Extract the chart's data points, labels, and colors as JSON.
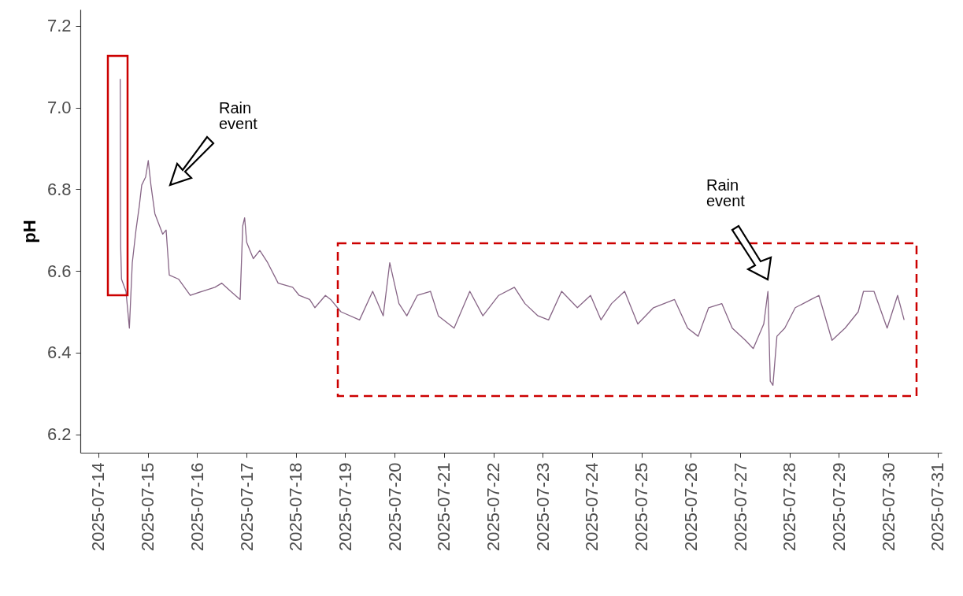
{
  "chart_data": {
    "type": "line",
    "ylabel": "pH",
    "x": [
      "2025-07-14T10:36",
      "2025-07-14T10:50",
      "2025-07-14T11:13",
      "2025-07-14T13:24",
      "2025-07-14T15:03",
      "2025-07-14T16:28",
      "2025-07-14T18:16",
      "2025-07-14T19:54",
      "2025-07-14T21:03",
      "2025-07-14T22:58",
      "2025-07-15T00:14",
      "2025-07-15T01:32",
      "2025-07-15T03:27",
      "2025-07-15T07:16",
      "2025-07-15T08:55",
      "2025-07-15T10:27",
      "2025-07-15T14:56",
      "2025-07-15T20:40",
      "2025-07-16T02:25",
      "2025-07-16T08:39",
      "2025-07-16T11:59",
      "2025-07-16T16:19",
      "2025-07-16T20:54",
      "2025-07-16T22:10",
      "2025-07-16T23:05",
      "2025-07-17T00:05",
      "2025-07-17T03:18",
      "2025-07-17T06:28",
      "2025-07-17T10:18",
      "2025-07-17T15:23",
      "2025-07-17T22:26",
      "2025-07-18T01:37",
      "2025-07-18T06:43",
      "2025-07-18T09:16",
      "2025-07-18T14:22",
      "2025-07-18T16:56",
      "2025-07-18T21:54",
      "2025-07-19T06:58",
      "2025-07-19T13:20",
      "2025-07-19T18:28",
      "2025-07-19T21:38",
      "2025-07-20T02:07",
      "2025-07-20T05:56",
      "2025-07-20T11:02",
      "2025-07-20T17:26",
      "2025-07-20T21:15",
      "2025-07-21T04:55",
      "2025-07-21T12:34",
      "2025-07-21T18:55",
      "2025-07-22T02:35",
      "2025-07-22T10:14",
      "2025-07-22T15:22",
      "2025-07-22T21:43",
      "2025-07-23T02:51",
      "2025-07-23T09:12",
      "2025-07-23T16:52",
      "2025-07-23T23:15",
      "2025-07-24T04:20",
      "2025-07-24T09:28",
      "2025-07-24T15:50",
      "2025-07-24T22:13",
      "2025-07-25T05:52",
      "2025-07-25T16:05",
      "2025-07-25T22:27",
      "2025-07-26T03:35",
      "2025-07-26T08:40",
      "2025-07-26T15:04",
      "2025-07-26T20:09",
      "2025-07-27T02:33",
      "2025-07-27T06:22",
      "2025-07-27T11:28",
      "2025-07-27T13:30",
      "2025-07-27T14:38",
      "2025-07-27T15:56",
      "2025-07-27T17:52",
      "2025-07-27T21:41",
      "2025-07-28T02:47",
      "2025-07-28T10:26",
      "2025-07-28T14:16",
      "2025-07-28T20:39",
      "2025-07-29T03:01",
      "2025-07-29T09:24",
      "2025-07-29T11:58",
      "2025-07-29T17:04",
      "2025-07-29T23:27",
      "2025-07-30T04:32",
      "2025-07-30T07:43"
    ],
    "series": [
      {
        "color": "#876586",
        "values": [
          7.07,
          6.66,
          6.58,
          6.55,
          6.46,
          6.62,
          6.7,
          6.76,
          6.81,
          6.83,
          6.87,
          6.81,
          6.74,
          6.69,
          6.7,
          6.59,
          6.58,
          6.54,
          6.55,
          6.56,
          6.57,
          6.55,
          6.53,
          6.71,
          6.73,
          6.67,
          6.63,
          6.65,
          6.62,
          6.57,
          6.56,
          6.54,
          6.53,
          6.51,
          6.54,
          6.53,
          6.5,
          6.48,
          6.55,
          6.49,
          6.62,
          6.52,
          6.49,
          6.54,
          6.55,
          6.49,
          6.46,
          6.55,
          6.49,
          6.54,
          6.56,
          6.52,
          6.49,
          6.48,
          6.55,
          6.51,
          6.54,
          6.48,
          6.52,
          6.55,
          6.47,
          6.51,
          6.53,
          6.46,
          6.44,
          6.51,
          6.52,
          6.46,
          6.43,
          6.41,
          6.47,
          6.55,
          6.33,
          6.32,
          6.44,
          6.46,
          6.51,
          6.53,
          6.54,
          6.43,
          6.46,
          6.5,
          6.55,
          6.55,
          6.46,
          6.54,
          6.48
        ]
      }
    ],
    "xlim": [
      "2025-07-13T15:12",
      "2025-07-31T02:00"
    ],
    "xticks": [
      "2025-07-14",
      "2025-07-15",
      "2025-07-16",
      "2025-07-17",
      "2025-07-18",
      "2025-07-19",
      "2025-07-20",
      "2025-07-21",
      "2025-07-22",
      "2025-07-23",
      "2025-07-24",
      "2025-07-25",
      "2025-07-26",
      "2025-07-27",
      "2025-07-28",
      "2025-07-29",
      "2025-07-30",
      "2025-07-31"
    ],
    "ylim": [
      6.155,
      7.24
    ],
    "yticks": [
      6.2,
      6.4,
      6.6,
      6.8,
      {
        "value": 7,
        "label": "7.0"
      },
      7.2
    ],
    "annotations": [
      "Rain event",
      "Rain event"
    ],
    "grid": false
  }
}
